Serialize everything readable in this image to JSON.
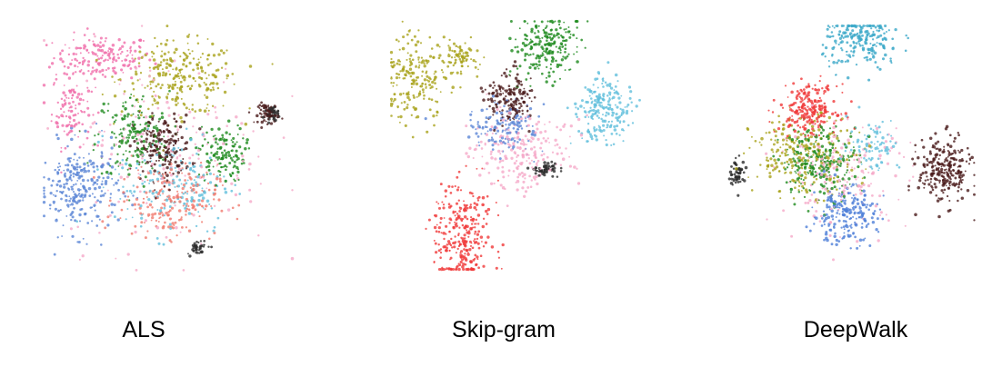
{
  "chart_data": {
    "type": "scatter",
    "description_grid": false,
    "panels": [
      {
        "label": "ALS",
        "clusters": [
          {
            "color": "#f06eaa",
            "blobs": [
              [
                -0.55,
                0.78,
                0.38,
                0.18,
                170
              ],
              [
                -0.82,
                0.35,
                0.15,
                0.3,
                110
              ]
            ]
          },
          {
            "color": "#a9a21c",
            "blobs": [
              [
                0.1,
                0.6,
                0.45,
                0.28,
                260
              ]
            ]
          },
          {
            "color": "#1d8a1d",
            "blobs": [
              [
                -0.3,
                0.1,
                0.28,
                0.35,
                170
              ],
              [
                0.45,
                -0.05,
                0.18,
                0.22,
                130
              ]
            ]
          },
          {
            "color": "#4a1a1a",
            "blobs": [
              [
                -0.05,
                0.0,
                0.22,
                0.25,
                190
              ],
              [
                0.85,
                0.3,
                0.08,
                0.08,
                70
              ]
            ]
          },
          {
            "color": "#5b86d6",
            "blobs": [
              [
                -0.75,
                -0.35,
                0.3,
                0.35,
                260
              ]
            ]
          },
          {
            "color": "#f07a6e",
            "blobs": [
              [
                0.0,
                -0.45,
                0.38,
                0.28,
                210
              ]
            ]
          },
          {
            "color": "#62bfdc",
            "blobs": [
              [
                0.05,
                -0.3,
                0.45,
                0.4,
                180
              ]
            ]
          },
          {
            "color": "#f5a9c8",
            "blobs": [
              [
                0.0,
                0.0,
                0.8,
                0.8,
                170
              ]
            ]
          },
          {
            "color": "#2c2c2c",
            "blobs": [
              [
                0.25,
                -0.85,
                0.08,
                0.06,
                40
              ],
              [
                0.88,
                0.3,
                0.05,
                0.05,
                40
              ]
            ]
          }
        ]
      },
      {
        "label": "Skip-gram",
        "clusters": [
          {
            "color": "#a9a21c",
            "blobs": [
              [
                -0.85,
                0.55,
                0.25,
                0.3,
                200
              ],
              [
                -0.5,
                0.75,
                0.15,
                0.12,
                80
              ]
            ]
          },
          {
            "color": "#1d8a1d",
            "blobs": [
              [
                0.25,
                0.85,
                0.25,
                0.25,
                220
              ]
            ]
          },
          {
            "color": "#4a1a1a",
            "blobs": [
              [
                -0.05,
                0.4,
                0.18,
                0.2,
                160
              ]
            ]
          },
          {
            "color": "#62bfdc",
            "blobs": [
              [
                0.75,
                0.3,
                0.22,
                0.25,
                220
              ]
            ]
          },
          {
            "color": "#5b86d6",
            "blobs": [
              [
                -0.1,
                0.15,
                0.25,
                0.18,
                130
              ]
            ]
          },
          {
            "color": "#f5a9c8",
            "blobs": [
              [
                0.05,
                -0.05,
                0.4,
                0.28,
                220
              ]
            ]
          },
          {
            "color": "#f03a3a",
            "blobs": [
              [
                -0.45,
                -0.75,
                0.22,
                0.4,
                280
              ]
            ]
          },
          {
            "color": "#2c2c2c",
            "blobs": [
              [
                0.25,
                -0.2,
                0.1,
                0.06,
                60
              ]
            ]
          }
        ]
      },
      {
        "label": "DeepWalk",
        "clusters": [
          {
            "color": "#3aa7c8",
            "blobs": [
              [
                0.1,
                0.92,
                0.3,
                0.22,
                220
              ]
            ]
          },
          {
            "color": "#f03a3a",
            "blobs": [
              [
                -0.35,
                0.35,
                0.22,
                0.18,
                230
              ]
            ]
          },
          {
            "color": "#4a1a1a",
            "blobs": [
              [
                0.8,
                -0.18,
                0.2,
                0.25,
                260
              ]
            ]
          },
          {
            "color": "#a9a21c",
            "blobs": [
              [
                -0.4,
                -0.05,
                0.4,
                0.3,
                250
              ]
            ]
          },
          {
            "color": "#1d8a1d",
            "blobs": [
              [
                -0.25,
                -0.1,
                0.3,
                0.28,
                240
              ]
            ]
          },
          {
            "color": "#4f7fd8",
            "blobs": [
              [
                -0.05,
                -0.55,
                0.25,
                0.22,
                220
              ]
            ]
          },
          {
            "color": "#f5a9c8",
            "blobs": [
              [
                -0.05,
                -0.2,
                0.5,
                0.4,
                180
              ]
            ]
          },
          {
            "color": "#62bfdc",
            "blobs": [
              [
                0.2,
                0.05,
                0.2,
                0.2,
                80
              ]
            ]
          },
          {
            "color": "#2c2c2c",
            "blobs": [
              [
                -0.95,
                -0.2,
                0.06,
                0.1,
                60
              ]
            ]
          }
        ]
      }
    ]
  }
}
